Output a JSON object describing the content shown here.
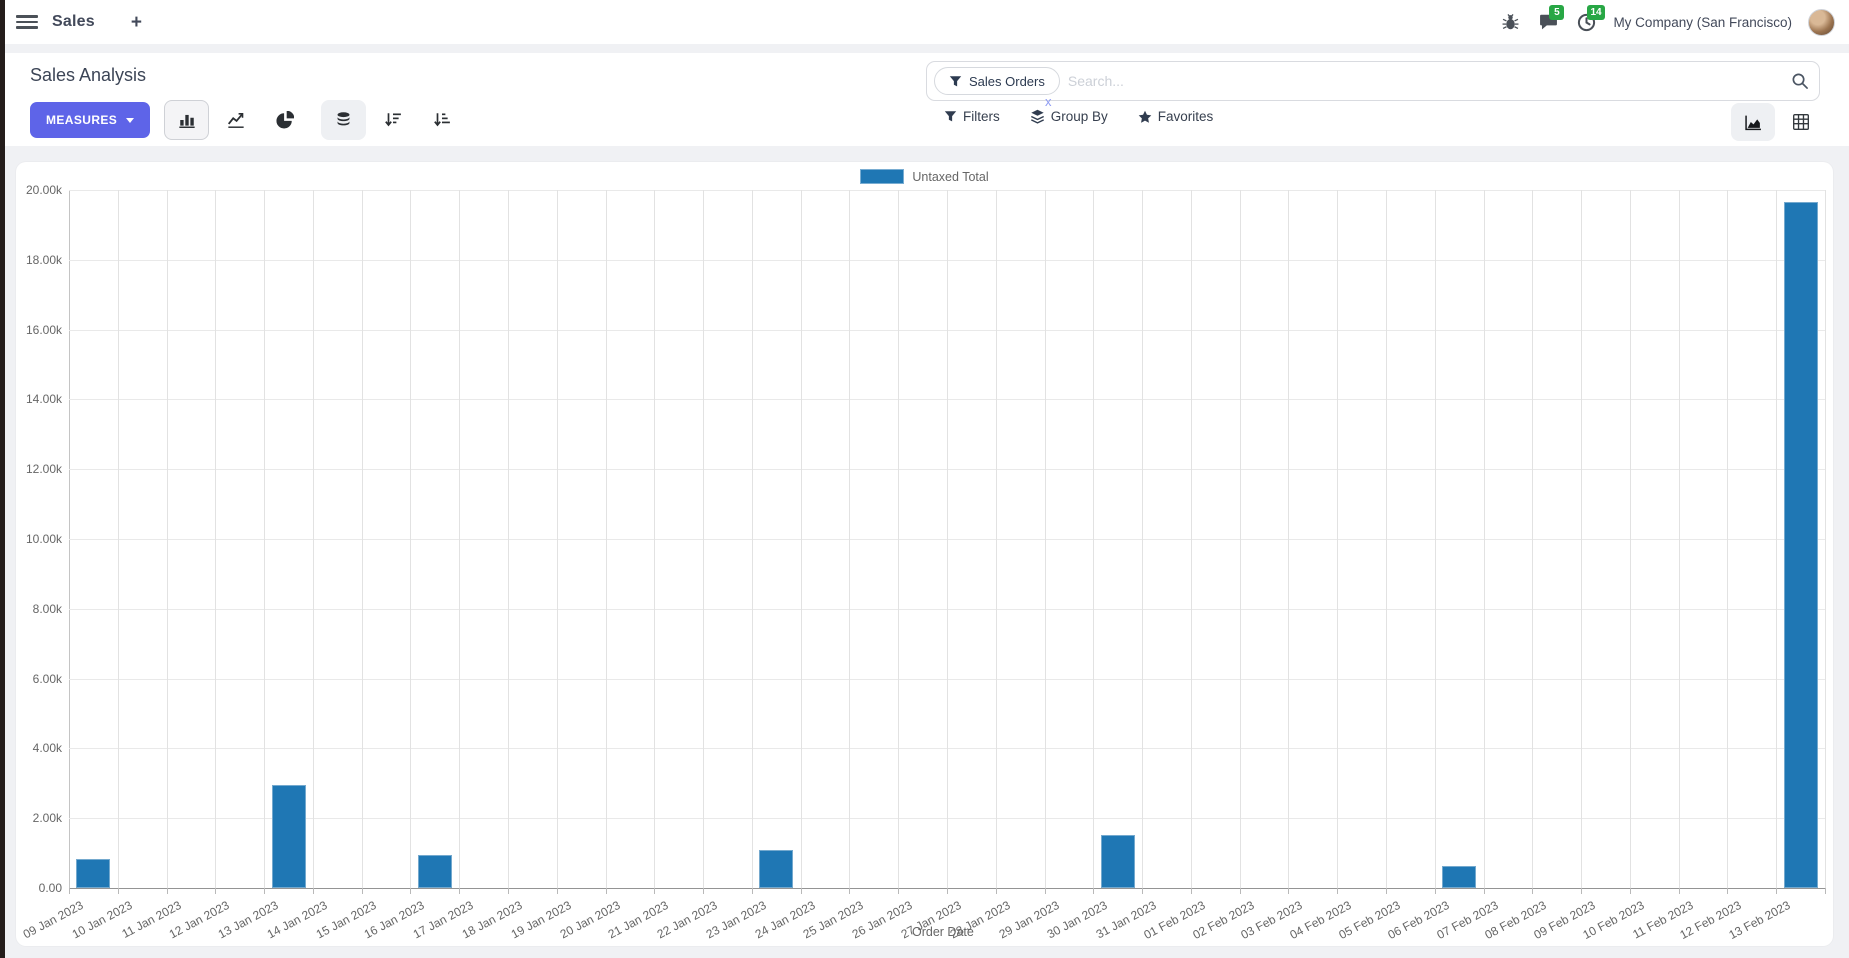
{
  "navbar": {
    "app_name": "Sales",
    "plus_label": "+",
    "messages_badge": "5",
    "activities_badge": "14",
    "company": "My Company (San Francisco)"
  },
  "control_panel": {
    "title": "Sales Analysis",
    "measures_label": "MEASURES",
    "search": {
      "facet_label": "Sales Orders",
      "facet_remove": "x",
      "placeholder": "Search..."
    },
    "filters_label": "Filters",
    "group_by_label": "Group By",
    "favorites_label": "Favorites"
  },
  "chart_data": {
    "type": "bar",
    "title": "",
    "xlabel": "Order Date",
    "ylabel": "",
    "ylim": [
      0,
      20000
    ],
    "ytick_step": 2000,
    "ytick_labels": [
      "0.00",
      "2.00k",
      "4.00k",
      "6.00k",
      "8.00k",
      "10.00k",
      "12.00k",
      "14.00k",
      "16.00k",
      "18.00k",
      "20.00k"
    ],
    "grid": true,
    "legend_position": "top",
    "categories": [
      "09 Jan 2023",
      "10 Jan 2023",
      "11 Jan 2023",
      "12 Jan 2023",
      "13 Jan 2023",
      "14 Jan 2023",
      "15 Jan 2023",
      "16 Jan 2023",
      "17 Jan 2023",
      "18 Jan 2023",
      "19 Jan 2023",
      "20 Jan 2023",
      "21 Jan 2023",
      "22 Jan 2023",
      "23 Jan 2023",
      "24 Jan 2023",
      "25 Jan 2023",
      "26 Jan 2023",
      "27 Jan 2023",
      "28 Jan 2023",
      "29 Jan 2023",
      "30 Jan 2023",
      "31 Jan 2023",
      "01 Feb 2023",
      "02 Feb 2023",
      "03 Feb 2023",
      "04 Feb 2023",
      "05 Feb 2023",
      "06 Feb 2023",
      "07 Feb 2023",
      "08 Feb 2023",
      "09 Feb 2023",
      "10 Feb 2023",
      "11 Feb 2023",
      "12 Feb 2023",
      "13 Feb 2023"
    ],
    "series": [
      {
        "name": "Untaxed Total",
        "color": "#1f77b4",
        "values": [
          820,
          0,
          0,
          0,
          2950,
          0,
          0,
          950,
          0,
          0,
          0,
          0,
          0,
          0,
          1080,
          0,
          0,
          0,
          0,
          0,
          0,
          1520,
          0,
          0,
          0,
          0,
          0,
          0,
          640,
          0,
          0,
          0,
          0,
          0,
          0,
          19650
        ]
      }
    ]
  },
  "colors": {
    "accent_button": "#5e64e8",
    "bar": "#1f77b4",
    "badge": "#28a745",
    "body_bg": "#f0f1f4"
  }
}
